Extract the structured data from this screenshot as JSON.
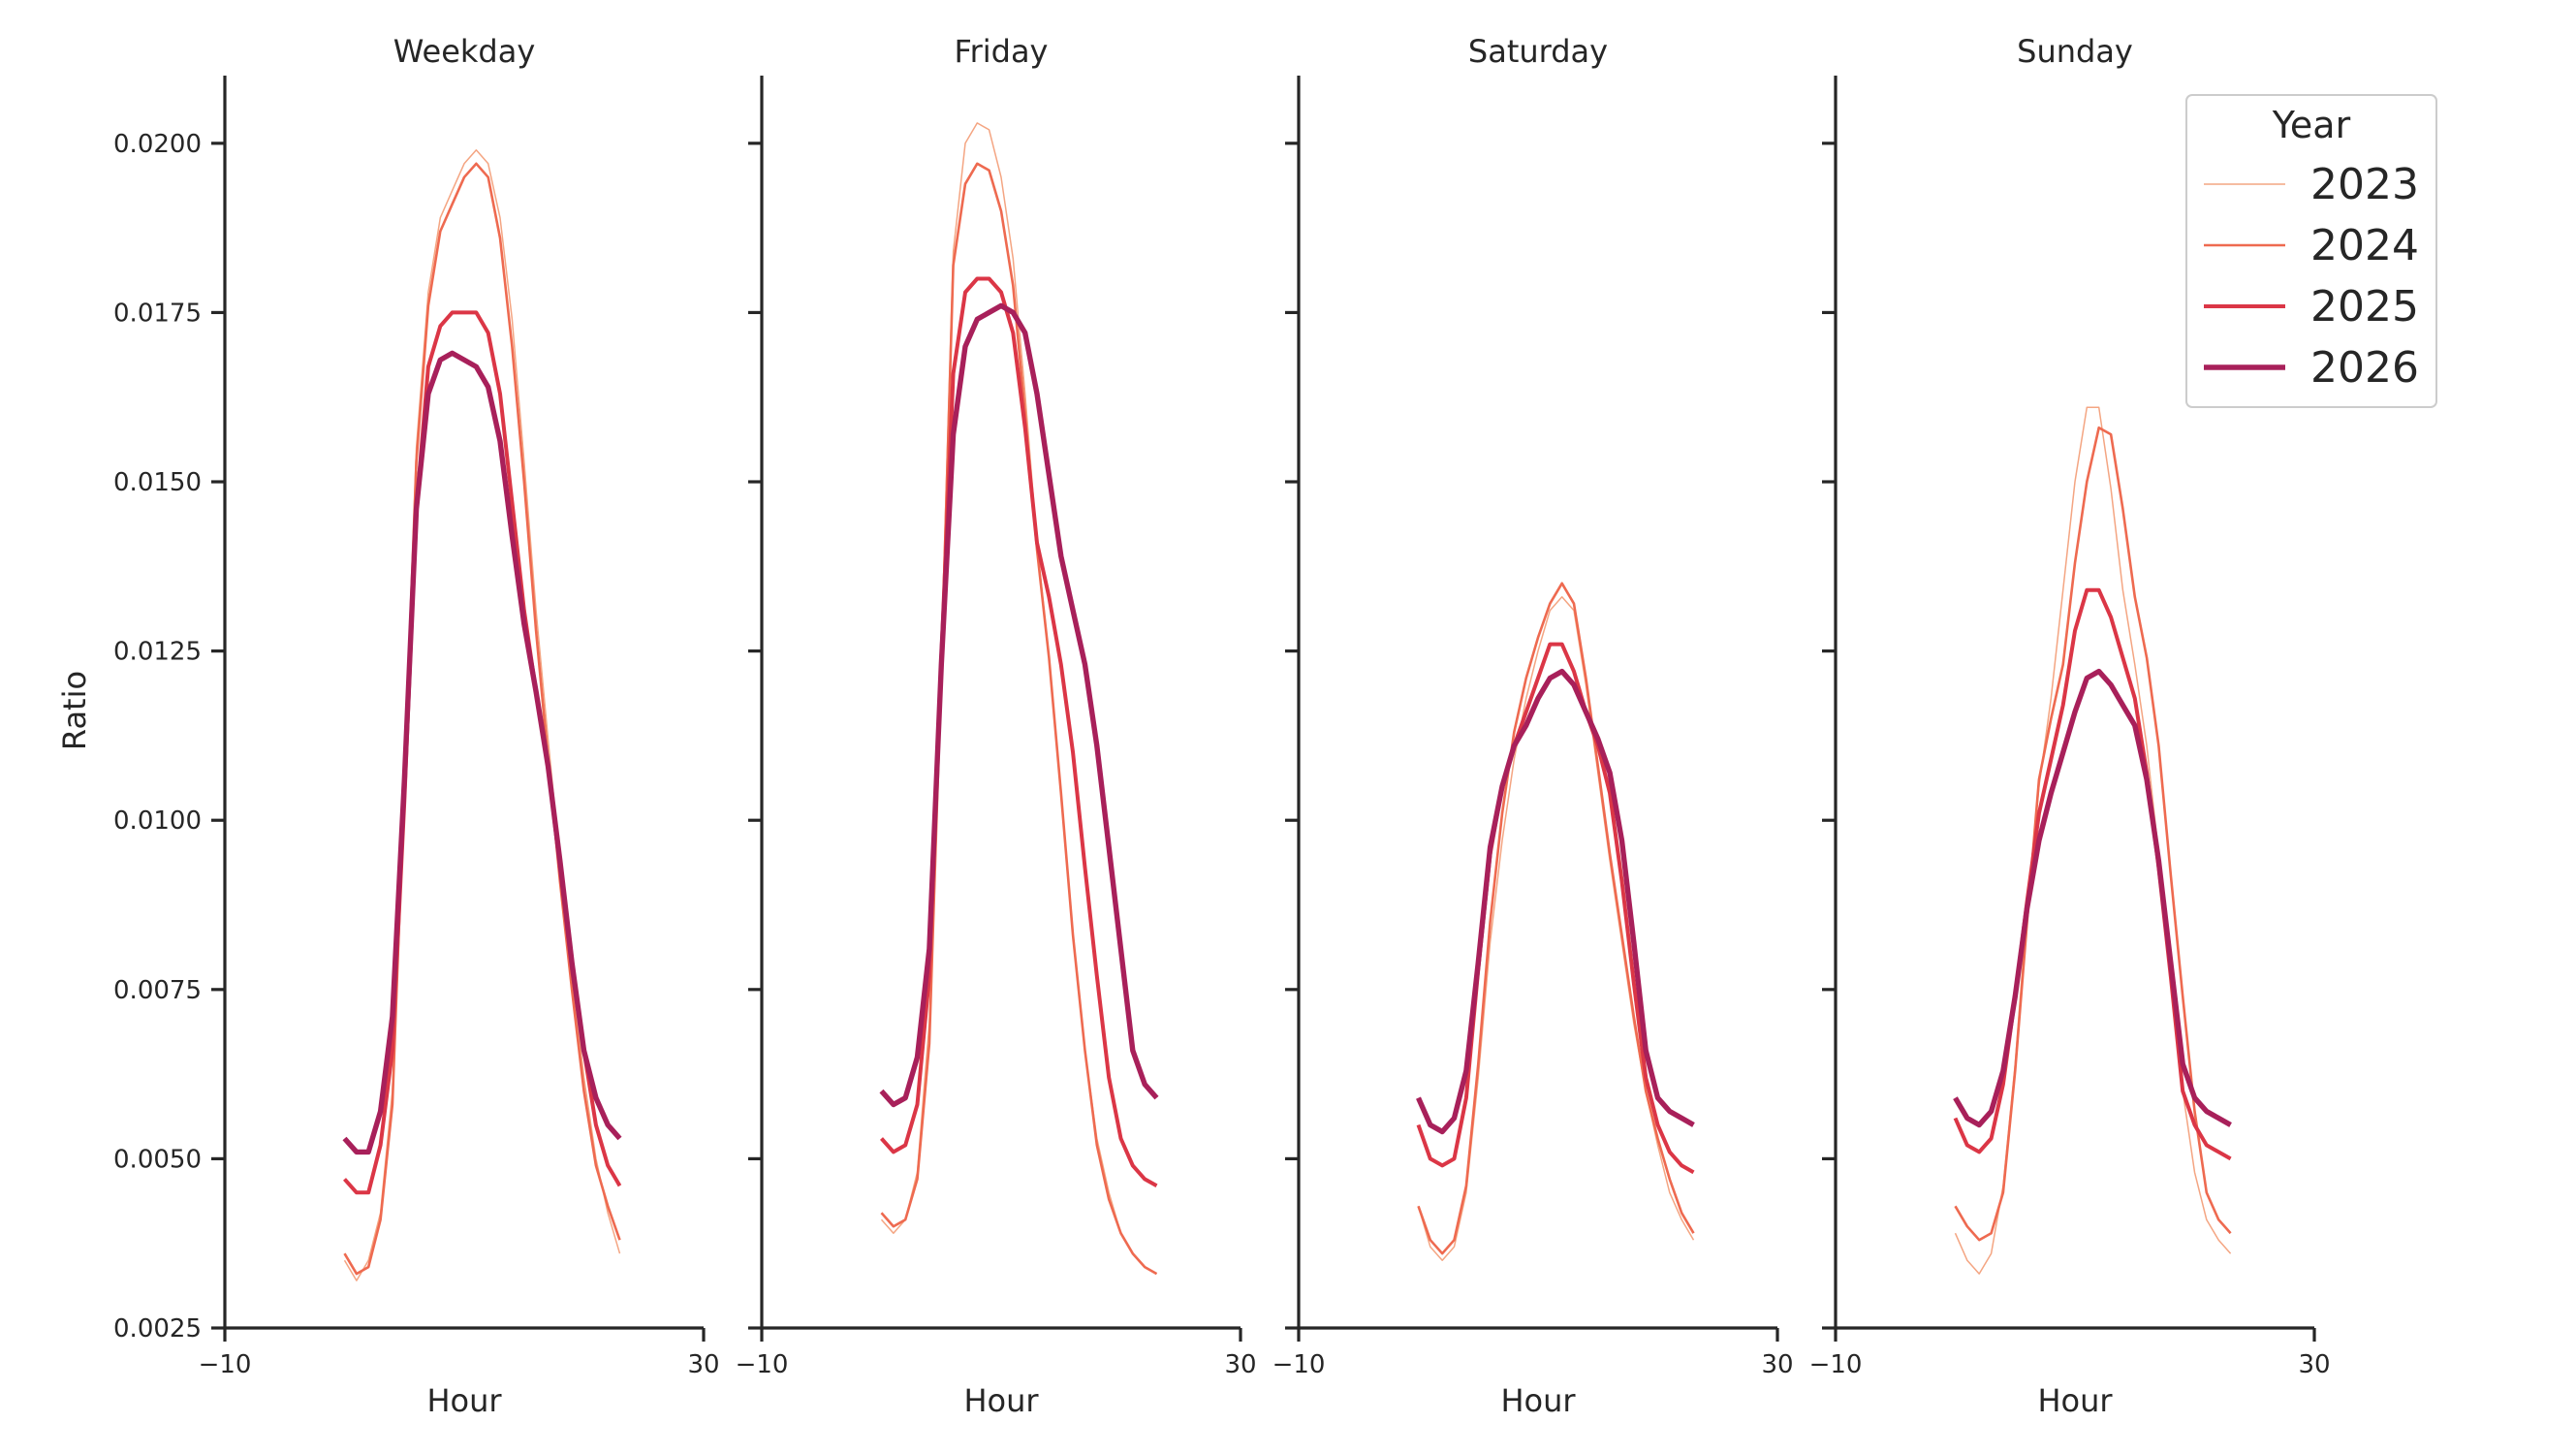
{
  "chart_data": {
    "type": "line",
    "facets": [
      "Weekday",
      "Friday",
      "Saturday",
      "Sunday"
    ],
    "xlabel": "Hour",
    "ylabel": "Ratio",
    "xlim": [
      -10,
      30
    ],
    "xticks": [
      -10,
      30
    ],
    "xtick_labels": [
      "−10",
      "30"
    ],
    "ylim": [
      0.0025,
      0.021
    ],
    "yticks": [
      0.0025,
      0.005,
      0.0075,
      0.01,
      0.0125,
      0.015,
      0.0175,
      0.02
    ],
    "ytick_labels": [
      "0.0025",
      "0.0050",
      "0.0075",
      "0.0100",
      "0.0125",
      "0.0150",
      "0.0175",
      "0.0200"
    ],
    "grid": false,
    "legend": {
      "title": "Year",
      "placement": "top-right",
      "entries": [
        "2023",
        "2024",
        "2025",
        "2026"
      ]
    },
    "x": [
      0,
      1,
      2,
      3,
      4,
      5,
      6,
      7,
      8,
      9,
      10,
      11,
      12,
      13,
      14,
      15,
      16,
      17,
      18,
      19,
      20,
      21,
      22,
      23
    ],
    "series": [
      {
        "name": "2023",
        "color": "#f4a582",
        "width": 1.5,
        "panels": [
          [
            0.0035,
            0.0032,
            0.0035,
            0.0042,
            0.006,
            0.0105,
            0.0155,
            0.0178,
            0.0189,
            0.0193,
            0.0197,
            0.0199,
            0.0197,
            0.0189,
            0.0174,
            0.0153,
            0.0131,
            0.0112,
            0.0094,
            0.0077,
            0.0062,
            0.005,
            0.0042,
            0.0036
          ],
          [
            0.0041,
            0.0039,
            0.0041,
            0.0048,
            0.007,
            0.0125,
            0.0184,
            0.02,
            0.0203,
            0.0202,
            0.0195,
            0.0183,
            0.0163,
            0.0141,
            0.0124,
            0.0104,
            0.0083,
            0.0066,
            0.0053,
            0.0045,
            0.0039,
            0.0036,
            0.0034,
            0.0033
          ],
          [
            0.0043,
            0.0037,
            0.0035,
            0.0037,
            0.0045,
            0.0062,
            0.0082,
            0.0097,
            0.0109,
            0.0118,
            0.0125,
            0.0131,
            0.0133,
            0.0131,
            0.012,
            0.0107,
            0.0094,
            0.0082,
            0.007,
            0.006,
            0.0052,
            0.0045,
            0.0041,
            0.0038
          ],
          [
            0.0039,
            0.0035,
            0.0033,
            0.0036,
            0.0046,
            0.0064,
            0.0087,
            0.0105,
            0.0118,
            0.0134,
            0.015,
            0.0161,
            0.0161,
            0.0149,
            0.0134,
            0.0123,
            0.0111,
            0.0095,
            0.0077,
            0.006,
            0.0048,
            0.0041,
            0.0038,
            0.0036
          ]
        ]
      },
      {
        "name": "2024",
        "color": "#ee6a50",
        "width": 2.6,
        "panels": [
          [
            0.0036,
            0.0033,
            0.0034,
            0.0041,
            0.0058,
            0.0106,
            0.0153,
            0.0176,
            0.0187,
            0.0191,
            0.0195,
            0.0197,
            0.0195,
            0.0186,
            0.017,
            0.015,
            0.0128,
            0.0109,
            0.0091,
            0.0075,
            0.006,
            0.0049,
            0.0043,
            0.0038
          ],
          [
            0.0042,
            0.004,
            0.0041,
            0.0047,
            0.0067,
            0.0122,
            0.0182,
            0.0194,
            0.0197,
            0.0196,
            0.019,
            0.0179,
            0.016,
            0.014,
            0.0124,
            0.0104,
            0.0083,
            0.0066,
            0.0052,
            0.0044,
            0.0039,
            0.0036,
            0.0034,
            0.0033
          ],
          [
            0.0043,
            0.0038,
            0.0036,
            0.0038,
            0.0046,
            0.0064,
            0.0085,
            0.0101,
            0.0113,
            0.0121,
            0.0127,
            0.0132,
            0.0135,
            0.0132,
            0.0121,
            0.0108,
            0.0095,
            0.0083,
            0.0071,
            0.006,
            0.0053,
            0.0047,
            0.0042,
            0.0039
          ],
          [
            0.0043,
            0.004,
            0.0038,
            0.0039,
            0.0045,
            0.0063,
            0.0085,
            0.0106,
            0.0115,
            0.0123,
            0.0138,
            0.015,
            0.0158,
            0.0157,
            0.0146,
            0.0133,
            0.0124,
            0.0111,
            0.0092,
            0.0074,
            0.0057,
            0.0045,
            0.0041,
            0.0039
          ]
        ]
      },
      {
        "name": "2025",
        "color": "#db3646",
        "width": 4.0,
        "panels": [
          [
            0.0047,
            0.0045,
            0.0045,
            0.0052,
            0.0066,
            0.0103,
            0.0146,
            0.0167,
            0.0173,
            0.0175,
            0.0175,
            0.0175,
            0.0172,
            0.0163,
            0.0147,
            0.0131,
            0.0119,
            0.0108,
            0.0093,
            0.0078,
            0.0066,
            0.0055,
            0.0049,
            0.0046
          ],
          [
            0.0053,
            0.0051,
            0.0052,
            0.0058,
            0.0077,
            0.0124,
            0.0166,
            0.0178,
            0.018,
            0.018,
            0.0178,
            0.0172,
            0.0158,
            0.0141,
            0.0133,
            0.0123,
            0.011,
            0.0093,
            0.0077,
            0.0062,
            0.0053,
            0.0049,
            0.0047,
            0.0046
          ],
          [
            0.0055,
            0.005,
            0.0049,
            0.005,
            0.0059,
            0.0078,
            0.0095,
            0.0105,
            0.0111,
            0.0116,
            0.0121,
            0.0126,
            0.0126,
            0.0122,
            0.0116,
            0.0111,
            0.0104,
            0.0091,
            0.0076,
            0.0062,
            0.0055,
            0.0051,
            0.0049,
            0.0048
          ],
          [
            0.0056,
            0.0052,
            0.0051,
            0.0053,
            0.0061,
            0.0074,
            0.0088,
            0.0101,
            0.0109,
            0.0117,
            0.0128,
            0.0134,
            0.0134,
            0.013,
            0.0124,
            0.0118,
            0.0107,
            0.0093,
            0.0077,
            0.006,
            0.0055,
            0.0052,
            0.0051,
            0.005
          ]
        ]
      },
      {
        "name": "2026",
        "color": "#a8205a",
        "width": 5.4,
        "panels": [
          [
            0.0053,
            0.0051,
            0.0051,
            0.0057,
            0.0071,
            0.0106,
            0.0146,
            0.0163,
            0.0168,
            0.0169,
            0.0168,
            0.0167,
            0.0164,
            0.0156,
            0.0142,
            0.0129,
            0.0119,
            0.0108,
            0.0094,
            0.0079,
            0.0066,
            0.0059,
            0.0055,
            0.0053
          ],
          [
            0.006,
            0.0058,
            0.0059,
            0.0065,
            0.0081,
            0.0123,
            0.0157,
            0.017,
            0.0174,
            0.0175,
            0.0176,
            0.0175,
            0.0172,
            0.0163,
            0.0151,
            0.0139,
            0.0131,
            0.0123,
            0.0111,
            0.0096,
            0.0081,
            0.0066,
            0.0061,
            0.0059
          ],
          [
            0.0059,
            0.0055,
            0.0054,
            0.0056,
            0.0063,
            0.0079,
            0.0096,
            0.0105,
            0.0111,
            0.0114,
            0.0118,
            0.0121,
            0.0122,
            0.012,
            0.0116,
            0.0112,
            0.0107,
            0.0097,
            0.0082,
            0.0066,
            0.0059,
            0.0057,
            0.0056,
            0.0055
          ],
          [
            0.0059,
            0.0056,
            0.0055,
            0.0057,
            0.0063,
            0.0074,
            0.0087,
            0.0097,
            0.0104,
            0.011,
            0.0116,
            0.0121,
            0.0122,
            0.012,
            0.0117,
            0.0114,
            0.0106,
            0.0094,
            0.0079,
            0.0064,
            0.0059,
            0.0057,
            0.0056,
            0.0055
          ]
        ]
      }
    ]
  }
}
